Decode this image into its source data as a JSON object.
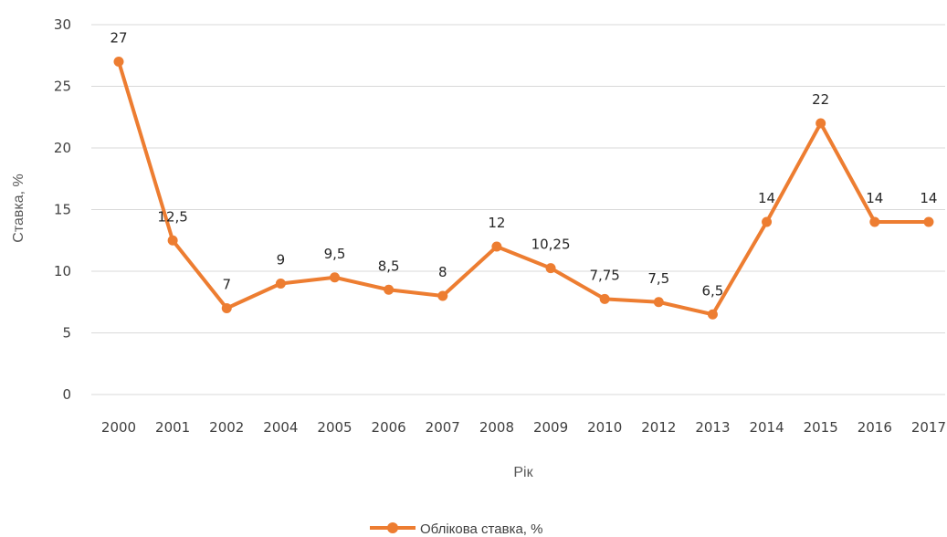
{
  "chart_data": {
    "type": "line",
    "categories": [
      "2000",
      "2001",
      "2002",
      "2004",
      "2005",
      "2006",
      "2007",
      "2008",
      "2009",
      "2010",
      "2012",
      "2013",
      "2014",
      "2015",
      "2016",
      "2017"
    ],
    "series": [
      {
        "name": "Облікова ставка, %",
        "values": [
          27,
          12.5,
          7,
          9,
          9.5,
          8.5,
          8,
          12,
          10.25,
          7.75,
          7.5,
          6.5,
          14,
          22,
          14,
          14
        ],
        "data_labels": [
          "27",
          "12,5",
          "7",
          "9",
          "9,5",
          "8,5",
          "8",
          "12",
          "10,25",
          "7,75",
          "7,5",
          "6,5",
          "14",
          "22",
          "14",
          "14"
        ],
        "color": "#ed7d31"
      }
    ],
    "xlabel": "Рік",
    "ylabel": "Ставка, %",
    "ylim": [
      0,
      30
    ],
    "yticks": [
      "0",
      "5",
      "10",
      "15",
      "20",
      "25",
      "30"
    ],
    "grid": true,
    "legend_position": "bottom"
  }
}
